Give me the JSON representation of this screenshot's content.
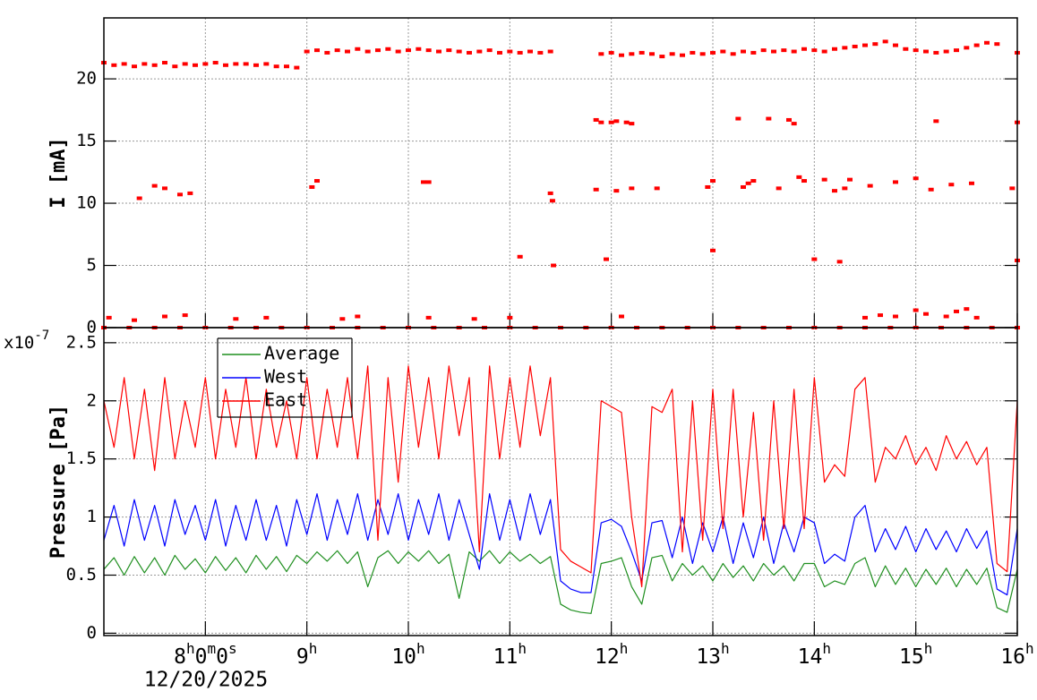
{
  "chart_data": [
    {
      "type": "scatter",
      "y_label": "I [mA]",
      "xlim": [
        7,
        16
      ],
      "ylim": [
        0,
        24.9
      ],
      "xticks": [
        8,
        9,
        10,
        11,
        12,
        13,
        14,
        15,
        16
      ],
      "yticks": [
        0,
        5,
        10,
        15,
        20
      ],
      "grid": true,
      "series": [
        {
          "color": "#ff0000",
          "x": [
            7,
            7.1,
            7.2,
            7.3,
            7.4,
            7.5,
            7.6,
            7.7,
            7.8,
            7.9,
            8,
            8.1,
            8.2,
            8.3,
            8.4,
            8.5,
            8.6,
            8.7,
            8.8,
            8.9,
            9,
            9.1,
            9.2,
            9.3,
            9.4,
            9.5,
            9.6,
            9.7,
            9.8,
            9.9,
            10,
            10.1,
            10.2,
            10.3,
            10.4,
            10.5,
            10.6,
            10.7,
            10.8,
            10.9,
            11,
            11.1,
            11.2,
            11.3,
            11.4,
            11.9,
            12,
            12.1,
            12.2,
            12.3,
            12.4,
            12.5,
            12.6,
            12.7,
            12.8,
            12.9,
            13,
            13.1,
            13.2,
            13.3,
            13.4,
            13.5,
            13.6,
            13.7,
            13.8,
            13.9,
            14,
            14.1,
            14.2,
            14.3,
            14.4,
            14.5,
            14.6,
            14.7,
            14.8,
            14.9,
            15,
            15.1,
            15.2,
            15.3,
            15.4,
            15.5,
            15.6,
            15.7,
            15.8,
            16,
            7.35,
            7.5,
            7.6,
            7.75,
            7.85,
            9.05,
            9.1,
            10.15,
            10.2,
            11.1,
            11.4,
            11.42,
            11.43,
            11.85,
            11.85,
            11.9,
            11.95,
            12,
            12.05,
            12.15,
            12.2,
            12.05,
            12.2,
            12.45,
            12.95,
            13,
            13,
            13.25,
            13.3,
            13.35,
            13.4,
            13.55,
            13.65,
            13.75,
            13.8,
            13.85,
            13.9,
            14,
            14.1,
            14.2,
            14.25,
            14.3,
            14.35,
            14.55,
            14.8,
            15,
            15.15,
            15.2,
            15.35,
            15.55,
            15.95,
            16,
            16,
            7.05,
            7.3,
            7.6,
            7.8,
            8.3,
            8.6,
            9.35,
            9.5,
            10.2,
            10.65,
            11,
            12.1,
            14.5,
            14.65,
            14.8,
            15,
            15.1,
            15.3,
            15.4,
            15.5,
            15.6,
            7,
            7.25,
            7.5,
            7.75,
            8,
            8.25,
            8.5,
            8.75,
            9,
            9.25,
            9.5,
            9.75,
            10,
            10.25,
            10.5,
            10.75,
            11,
            11.25,
            11.5,
            11.75,
            12,
            12.25,
            12.5,
            12.75,
            13,
            13.25,
            13.5,
            13.75,
            14,
            14.25,
            14.5,
            14.75,
            15,
            15.25,
            15.5,
            15.75,
            16
          ],
          "values": [
            21.3,
            21.1,
            21.2,
            21.0,
            21.2,
            21.1,
            21.3,
            21.0,
            21.2,
            21.1,
            21.2,
            21.3,
            21.1,
            21.2,
            21.2,
            21.1,
            21.2,
            21.0,
            21.0,
            20.9,
            22.2,
            22.3,
            22.1,
            22.3,
            22.2,
            22.4,
            22.2,
            22.3,
            22.4,
            22.2,
            22.3,
            22.4,
            22.3,
            22.2,
            22.3,
            22.2,
            22.1,
            22.2,
            22.3,
            22.1,
            22.2,
            22.1,
            22.2,
            22.1,
            22.2,
            22.0,
            22.1,
            21.9,
            22.0,
            22.1,
            22.0,
            21.8,
            22.0,
            21.9,
            22.1,
            22.0,
            22.1,
            22.2,
            22.0,
            22.2,
            22.1,
            22.3,
            22.2,
            22.3,
            22.2,
            22.4,
            22.3,
            22.2,
            22.4,
            22.5,
            22.6,
            22.7,
            22.8,
            23.0,
            22.7,
            22.4,
            22.3,
            22.2,
            22.1,
            22.2,
            22.3,
            22.5,
            22.7,
            22.9,
            22.8,
            22.1,
            10.4,
            11.4,
            11.2,
            10.7,
            10.8,
            11.3,
            11.8,
            11.7,
            11.7,
            5.7,
            10.8,
            10.2,
            5.0,
            16.7,
            11.1,
            16.5,
            5.5,
            16.5,
            16.6,
            16.5,
            16.4,
            11.0,
            11.2,
            11.2,
            11.3,
            6.2,
            11.8,
            16.8,
            11.3,
            11.6,
            11.8,
            16.8,
            11.2,
            16.7,
            16.4,
            12.1,
            11.8,
            5.5,
            11.9,
            11.0,
            5.3,
            11.2,
            11.9,
            11.4,
            11.7,
            12.0,
            11.1,
            16.6,
            11.5,
            11.6,
            11.2,
            16.5,
            5.4,
            0.8,
            0.6,
            0.9,
            1.0,
            0.7,
            0.8,
            0.7,
            0.9,
            0.8,
            0.7,
            0.8,
            0.9,
            0.8,
            1.0,
            0.9,
            1.4,
            1.1,
            0.9,
            1.3,
            1.5,
            0.8,
            0,
            0,
            0,
            0,
            0,
            0,
            0,
            0,
            0,
            0,
            0,
            0,
            0,
            0,
            0,
            0,
            0,
            0,
            0,
            0,
            0,
            0,
            0,
            0,
            0,
            0,
            0,
            0,
            0,
            0,
            0,
            0,
            0,
            0,
            0,
            0,
            0
          ]
        }
      ]
    },
    {
      "type": "line",
      "y_label": "Pressure [Pa]",
      "y_multiplier": {
        "base": "x10",
        "exponent": "-7"
      },
      "x_date": "12/20/2025",
      "xlim": [
        7,
        16
      ],
      "ylim": [
        -0.02,
        2.63
      ],
      "xticks": [
        {
          "value": 8,
          "label": "8h0m0s"
        },
        {
          "value": 9,
          "label": "9h"
        },
        {
          "value": 10,
          "label": "10h"
        },
        {
          "value": 11,
          "label": "11h"
        },
        {
          "value": 12,
          "label": "12h"
        },
        {
          "value": 13,
          "label": "13h"
        },
        {
          "value": 14,
          "label": "14h"
        },
        {
          "value": 15,
          "label": "15h"
        },
        {
          "value": 16,
          "label": "16h"
        }
      ],
      "yticks": [
        0,
        0.5,
        1,
        1.5,
        2,
        2.5
      ],
      "grid": true,
      "legend": "top-left",
      "x": [
        7,
        7.1,
        7.2,
        7.3,
        7.4,
        7.5,
        7.6,
        7.7,
        7.8,
        7.9,
        8,
        8.1,
        8.2,
        8.3,
        8.4,
        8.5,
        8.6,
        8.7,
        8.8,
        8.9,
        9,
        9.1,
        9.2,
        9.3,
        9.4,
        9.5,
        9.6,
        9.7,
        9.8,
        9.9,
        10,
        10.1,
        10.2,
        10.3,
        10.4,
        10.5,
        10.6,
        10.7,
        10.8,
        10.9,
        11,
        11.1,
        11.2,
        11.3,
        11.4,
        11.5,
        11.6,
        11.7,
        11.8,
        11.9,
        12,
        12.1,
        12.2,
        12.3,
        12.4,
        12.5,
        12.6,
        12.7,
        12.8,
        12.9,
        13,
        13.1,
        13.2,
        13.3,
        13.4,
        13.5,
        13.6,
        13.7,
        13.8,
        13.9,
        14,
        14.1,
        14.2,
        14.3,
        14.4,
        14.5,
        14.6,
        14.7,
        14.8,
        14.9,
        15,
        15.1,
        15.2,
        15.3,
        15.4,
        15.5,
        15.6,
        15.7,
        15.8,
        15.9,
        16
      ],
      "series": [
        {
          "name": "Average",
          "color": "#1f8f1f",
          "values": [
            0.55,
            0.65,
            0.5,
            0.66,
            0.52,
            0.65,
            0.5,
            0.67,
            0.55,
            0.64,
            0.52,
            0.66,
            0.54,
            0.65,
            0.52,
            0.67,
            0.55,
            0.66,
            0.53,
            0.67,
            0.6,
            0.7,
            0.62,
            0.71,
            0.6,
            0.7,
            0.4,
            0.65,
            0.71,
            0.6,
            0.7,
            0.62,
            0.71,
            0.6,
            0.68,
            0.3,
            0.7,
            0.62,
            0.71,
            0.6,
            0.7,
            0.62,
            0.68,
            0.6,
            0.66,
            0.25,
            0.2,
            0.18,
            0.17,
            0.6,
            0.62,
            0.65,
            0.4,
            0.25,
            0.65,
            0.67,
            0.45,
            0.6,
            0.5,
            0.58,
            0.45,
            0.6,
            0.48,
            0.58,
            0.45,
            0.6,
            0.5,
            0.58,
            0.45,
            0.6,
            0.6,
            0.4,
            0.45,
            0.42,
            0.6,
            0.65,
            0.4,
            0.58,
            0.42,
            0.56,
            0.4,
            0.55,
            0.42,
            0.56,
            0.4,
            0.55,
            0.42,
            0.56,
            0.22,
            0.18,
            0.55
          ]
        },
        {
          "name": "West",
          "color": "#0000ff",
          "values": [
            0.8,
            1.1,
            0.75,
            1.15,
            0.8,
            1.1,
            0.75,
            1.15,
            0.85,
            1.1,
            0.8,
            1.15,
            0.75,
            1.1,
            0.8,
            1.15,
            0.8,
            1.1,
            0.75,
            1.15,
            0.85,
            1.2,
            0.8,
            1.15,
            0.85,
            1.2,
            0.8,
            1.15,
            0.85,
            1.2,
            0.8,
            1.15,
            0.85,
            1.2,
            0.8,
            1.15,
            0.85,
            0.55,
            1.2,
            0.8,
            1.15,
            0.8,
            1.2,
            0.85,
            1.15,
            0.45,
            0.38,
            0.35,
            0.35,
            0.95,
            0.98,
            0.92,
            0.7,
            0.45,
            0.95,
            0.97,
            0.65,
            1.0,
            0.6,
            0.95,
            0.7,
            1.0,
            0.6,
            0.95,
            0.65,
            1.0,
            0.6,
            0.95,
            0.7,
            1.0,
            0.95,
            0.6,
            0.68,
            0.62,
            1.0,
            1.1,
            0.7,
            0.9,
            0.72,
            0.92,
            0.7,
            0.9,
            0.72,
            0.88,
            0.7,
            0.9,
            0.73,
            0.88,
            0.38,
            0.33,
            0.9
          ]
        },
        {
          "name": "East",
          "color": "#ff0000",
          "values": [
            2.0,
            1.6,
            2.2,
            1.5,
            2.1,
            1.4,
            2.2,
            1.5,
            2.0,
            1.6,
            2.2,
            1.5,
            2.1,
            1.6,
            2.2,
            1.5,
            2.1,
            1.6,
            2.0,
            1.5,
            2.2,
            1.5,
            2.1,
            1.6,
            2.2,
            1.5,
            2.3,
            0.8,
            2.2,
            1.3,
            2.3,
            1.6,
            2.2,
            1.5,
            2.3,
            1.7,
            2.2,
            0.7,
            2.3,
            1.5,
            2.2,
            1.6,
            2.3,
            1.7,
            2.2,
            0.72,
            0.62,
            0.57,
            0.52,
            2.0,
            1.95,
            1.9,
            1.0,
            0.4,
            1.95,
            1.9,
            2.1,
            0.7,
            2.0,
            0.8,
            2.1,
            0.9,
            2.1,
            1.0,
            1.9,
            0.8,
            2.0,
            0.9,
            2.1,
            0.9,
            2.2,
            1.3,
            1.45,
            1.35,
            2.1,
            2.2,
            1.3,
            1.6,
            1.5,
            1.7,
            1.45,
            1.6,
            1.4,
            1.7,
            1.5,
            1.65,
            1.45,
            1.6,
            0.6,
            0.53,
            2.0
          ]
        }
      ]
    }
  ]
}
